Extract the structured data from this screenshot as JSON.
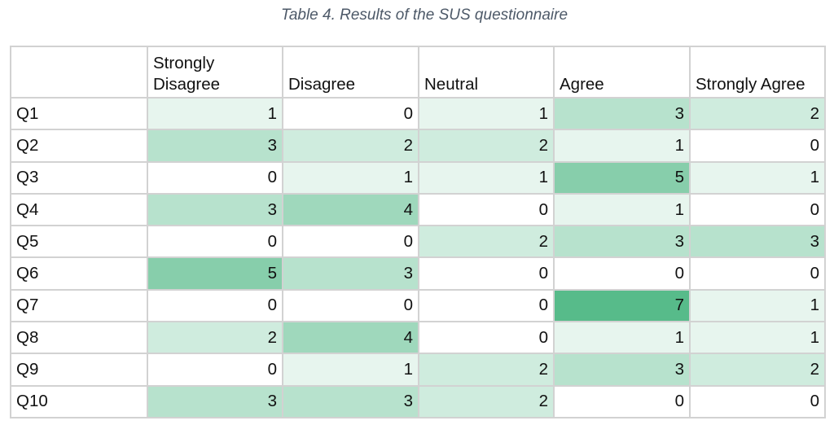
{
  "caption": "Table 4. Results of the SUS questionnaire",
  "chart_data": {
    "type": "table",
    "title": "Table 4. Results of the SUS questionnaire",
    "columns": [
      "Strongly Disagree",
      "Disagree",
      "Neutral",
      "Agree",
      "Strongly Agree"
    ],
    "rows": [
      {
        "label": "Q1",
        "values": [
          1,
          0,
          1,
          3,
          2
        ]
      },
      {
        "label": "Q2",
        "values": [
          3,
          2,
          2,
          1,
          0
        ]
      },
      {
        "label": "Q3",
        "values": [
          0,
          1,
          1,
          5,
          1
        ]
      },
      {
        "label": "Q4",
        "values": [
          3,
          4,
          0,
          1,
          0
        ]
      },
      {
        "label": "Q5",
        "values": [
          0,
          0,
          2,
          3,
          3
        ]
      },
      {
        "label": "Q6",
        "values": [
          5,
          3,
          0,
          0,
          0
        ]
      },
      {
        "label": "Q7",
        "values": [
          0,
          0,
          0,
          7,
          1
        ]
      },
      {
        "label": "Q8",
        "values": [
          2,
          4,
          0,
          1,
          1
        ]
      },
      {
        "label": "Q9",
        "values": [
          0,
          1,
          2,
          3,
          2
        ]
      },
      {
        "label": "Q10",
        "values": [
          3,
          3,
          2,
          0,
          0
        ]
      }
    ],
    "color_scale": {
      "min": 0,
      "max": 7,
      "low_color": "#ffffff",
      "high_color": "#57bb8a"
    }
  }
}
